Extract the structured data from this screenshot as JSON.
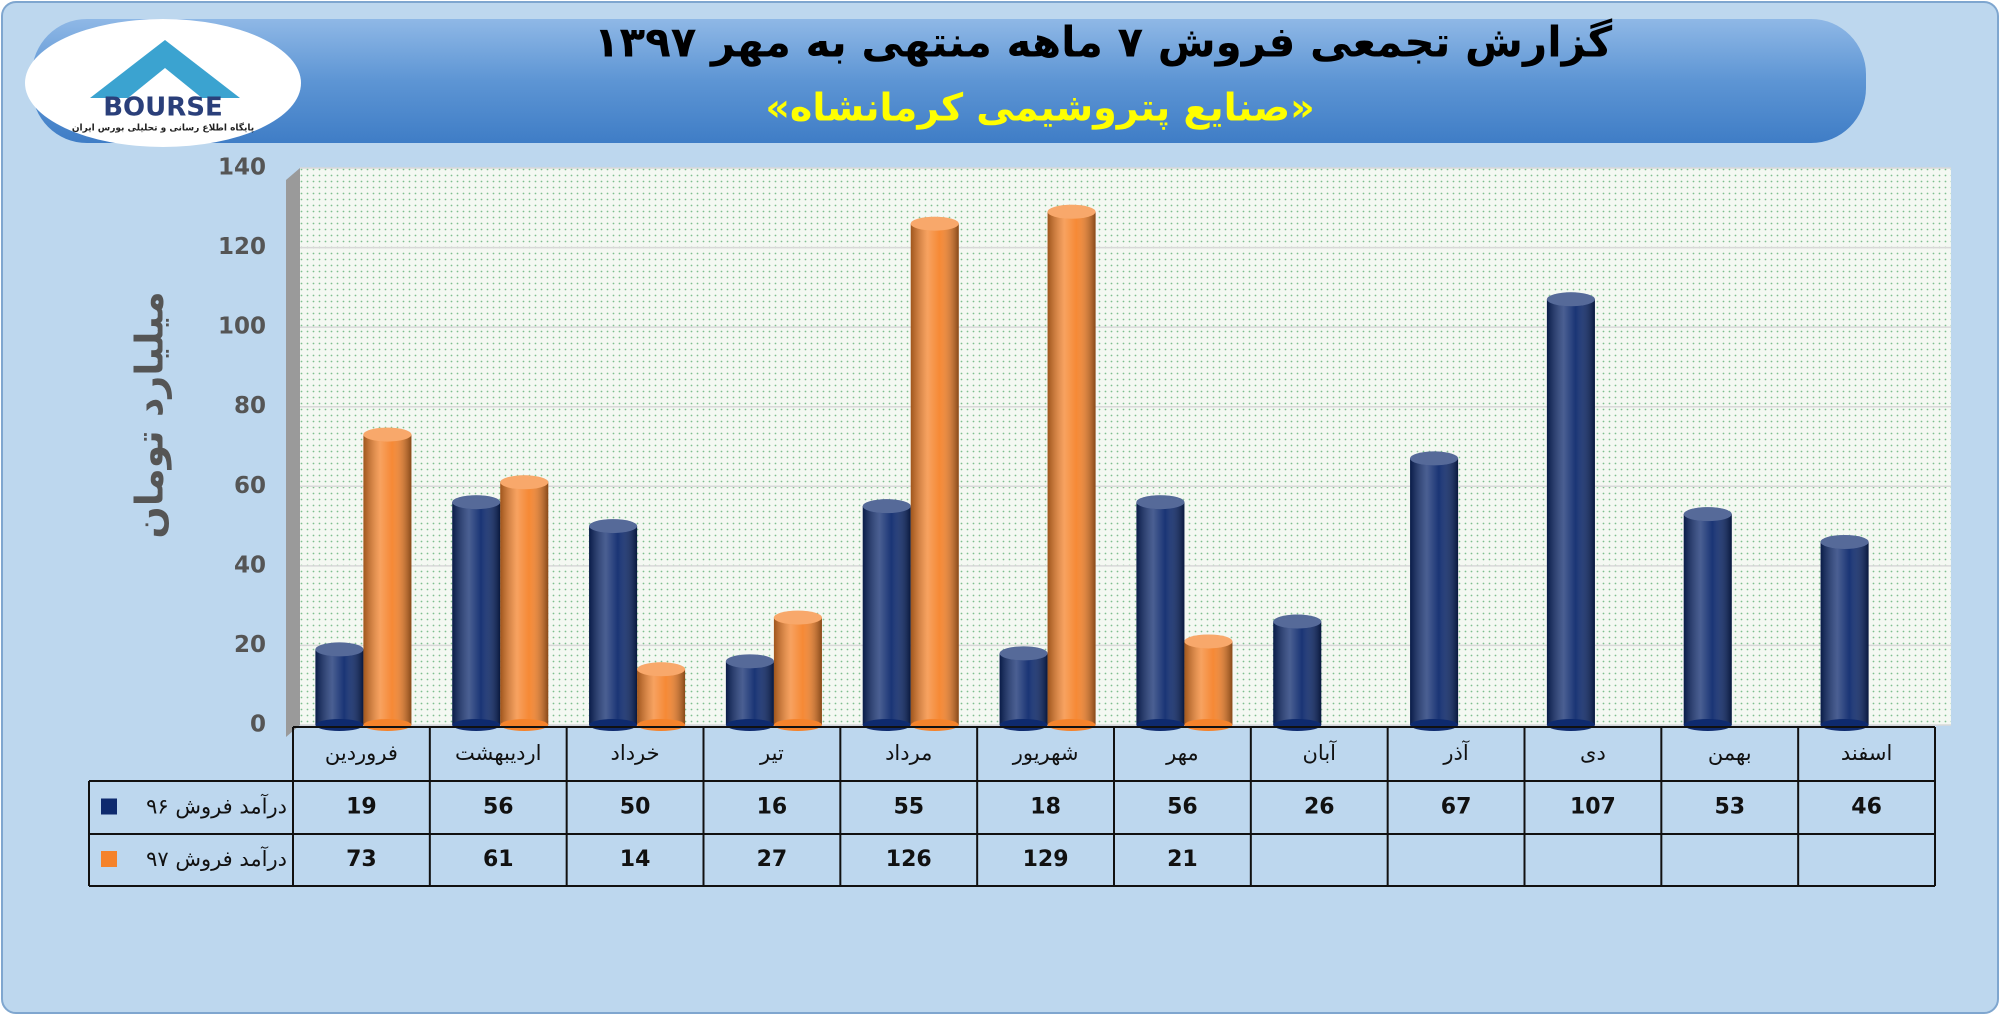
{
  "logo": {
    "name": "BOURSE",
    "tagline": "پایگاه اطلاع رسانی و تحلیلی بورس ایران"
  },
  "chart_data": {
    "type": "bar",
    "title": "گزارش تجمعی فروش ۷ ماهه منتهی به مهر ۱۳۹۷",
    "subtitle": "«صنایع پتروشیمی کرمانشاه»",
    "y_label": "میلیارد تومان",
    "categories": [
      "فروردین",
      "اردیبهشت",
      "خرداد",
      "تیر",
      "مرداد",
      "شهریور",
      "مهر",
      "آبان",
      "آذر",
      "دی",
      "بهمن",
      "اسفند"
    ],
    "series": [
      {
        "name": "درآمد فروش ۹۶",
        "color": "#0e2a6e",
        "values": [
          19,
          56,
          50,
          16,
          55,
          18,
          56,
          26,
          67,
          107,
          53,
          46
        ]
      },
      {
        "name": "درآمد فروش ۹۷",
        "color": "#f5832b",
        "values": [
          73,
          61,
          14,
          27,
          126,
          129,
          21,
          null,
          null,
          null,
          null,
          null
        ]
      }
    ],
    "ylim": [
      0,
      140
    ],
    "yticks": [
      0,
      20,
      40,
      60,
      80,
      100,
      120,
      140
    ],
    "grid": true
  }
}
